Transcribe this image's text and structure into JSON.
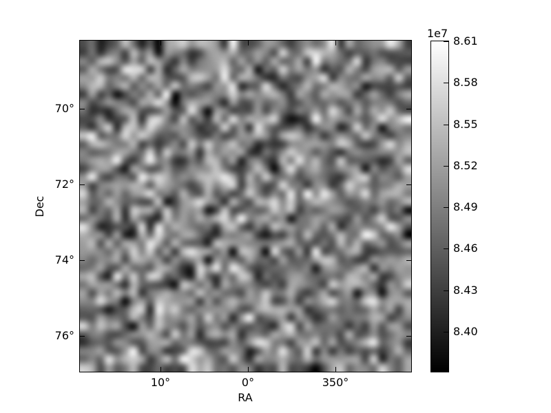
{
  "chart_data": {
    "type": "heatmap",
    "title": "",
    "xlabel": "RA",
    "ylabel": "Dec",
    "x_axis": {
      "range": [
        19.2,
        -18.7
      ],
      "ticks": [
        {
          "value": 10,
          "label": "10°"
        },
        {
          "value": 0,
          "label": "0°"
        },
        {
          "value": -10,
          "label": "350°"
        }
      ]
    },
    "y_axis": {
      "range": [
        68.2,
        76.95
      ],
      "ticks": [
        {
          "value": 70,
          "label": "70°"
        },
        {
          "value": 72,
          "label": "72°"
        },
        {
          "value": 74,
          "label": "74°"
        },
        {
          "value": 76,
          "label": "76°"
        }
      ]
    },
    "colormap": "gray",
    "colorbar": {
      "offset_label": "1e7",
      "units_scale": 10000000,
      "range": [
        8.371,
        8.61
      ],
      "ticks": [
        {
          "value": 8.61,
          "label": "8.61"
        },
        {
          "value": 8.58,
          "label": "8.58"
        },
        {
          "value": 8.55,
          "label": "8.55"
        },
        {
          "value": 8.52,
          "label": "8.52"
        },
        {
          "value": 8.49,
          "label": "8.49"
        },
        {
          "value": 8.46,
          "label": "8.46"
        },
        {
          "value": 8.43,
          "label": "8.43"
        },
        {
          "value": 8.4,
          "label": "8.40"
        }
      ]
    },
    "grid": {
      "rows": 40,
      "cols": 40,
      "seed": 42,
      "mean": 8.49,
      "std": 0.05
    },
    "legend": "none",
    "grid_lines": "off",
    "frame_color": "#000000",
    "background_color": "#ffffff"
  }
}
